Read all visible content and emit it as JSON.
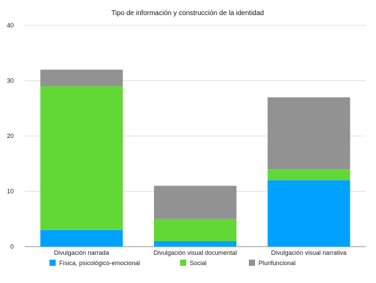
{
  "chart_data": {
    "type": "bar",
    "stacked": true,
    "title": "Tipo de información y construcción de la identidad",
    "categories": [
      "Divulgación narrada",
      "Divulgación visual documental",
      "Divulgación visual narrativa"
    ],
    "series": [
      {
        "name": "Física, psicológico-emocional",
        "color": "#00a2ff",
        "values": [
          3,
          1,
          12
        ]
      },
      {
        "name": "Social",
        "color": "#61d836",
        "values": [
          26,
          4,
          2
        ]
      },
      {
        "name": "Plurifuncional",
        "color": "#929292",
        "values": [
          3,
          6,
          13
        ]
      }
    ],
    "ylim": [
      0,
      40
    ],
    "yticks": [
      0,
      10,
      20,
      30,
      40
    ],
    "grid": true,
    "legend": "bottom"
  }
}
